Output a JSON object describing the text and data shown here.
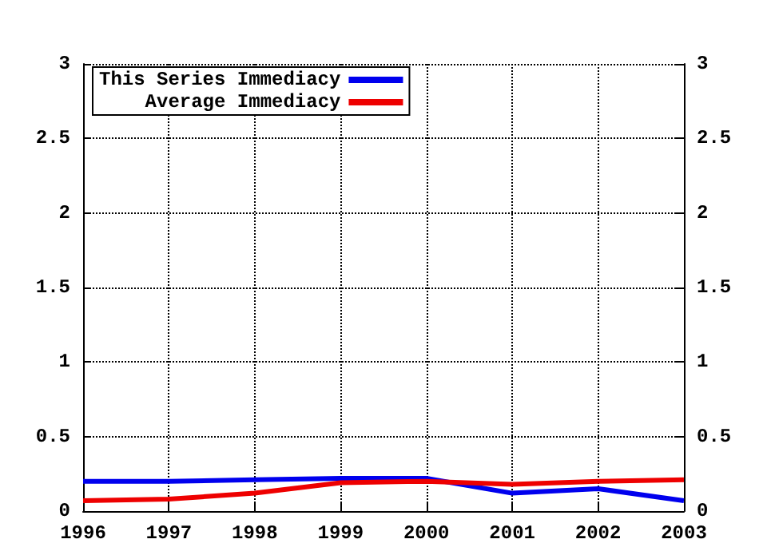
{
  "chart_data": {
    "type": "line",
    "x": [
      1996,
      1997,
      1998,
      1999,
      2000,
      2001,
      2002,
      2003
    ],
    "series": [
      {
        "name": "This Series Immediacy",
        "color": "#0000ee",
        "values": [
          0.2,
          0.2,
          0.21,
          0.22,
          0.22,
          0.12,
          0.15,
          0.07
        ]
      },
      {
        "name": "Average Immediacy",
        "color": "#ee0000",
        "values": [
          0.07,
          0.08,
          0.12,
          0.19,
          0.2,
          0.18,
          0.2,
          0.21
        ]
      }
    ],
    "xlim": [
      1996,
      2003
    ],
    "xticks": [
      1996,
      1997,
      1998,
      1999,
      2000,
      2001,
      2002,
      2003
    ],
    "ylim": [
      0,
      3
    ],
    "yticks": [
      0,
      {
        "value": 0.5,
        "label": "0.5"
      },
      1,
      {
        "value": 1.5,
        "label": "1.5"
      },
      2,
      {
        "value": 2.5,
        "label": "2.5"
      },
      3
    ],
    "y2lim": [
      0,
      3
    ],
    "y2ticks": [
      0,
      {
        "value": 0.5,
        "label": "0.5"
      },
      1,
      {
        "value": 1.5,
        "label": "1.5"
      },
      2,
      {
        "value": 2.5,
        "label": "2.5"
      },
      3
    ],
    "grid": true,
    "legend": "top left",
    "marker": "none",
    "line_style": "solid"
  }
}
